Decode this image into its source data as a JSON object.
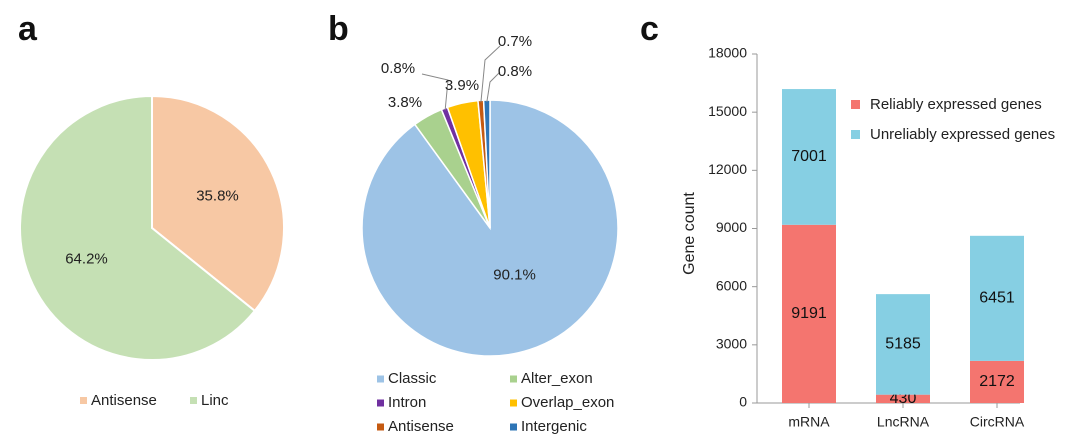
{
  "chart_data": [
    {
      "panel": "a",
      "type": "pie",
      "labels": [
        "Antisense",
        "Linc"
      ],
      "values": [
        35.8,
        64.2
      ],
      "value_labels": [
        "35.8%",
        "64.2%"
      ],
      "colors": [
        "#f7c8a4",
        "#c5e0b4"
      ],
      "legend_position": "bottom"
    },
    {
      "panel": "b",
      "type": "pie",
      "labels": [
        "Classic",
        "Alter_exon",
        "Intron",
        "Overlap_exon",
        "Antisense",
        "Intergenic"
      ],
      "values": [
        90.1,
        3.8,
        0.8,
        3.9,
        0.7,
        0.8
      ],
      "value_labels": [
        "90.1%",
        "3.8%",
        "0.8%",
        "3.9%",
        "0.7%",
        "0.8%"
      ],
      "colors": [
        "#9dc3e6",
        "#a9d18e",
        "#7030a0",
        "#ffc000",
        "#c55a11",
        "#2e75b6"
      ],
      "legend_position": "bottom"
    },
    {
      "panel": "c",
      "type": "bar",
      "stacked": true,
      "categories": [
        "mRNA",
        "LncRNA",
        "CircRNA"
      ],
      "series": [
        {
          "name": "Reliably expressed genes",
          "values": [
            9191,
            430,
            2172
          ],
          "color": "#f4756f"
        },
        {
          "name": "Unreliably expressed genes",
          "values": [
            7001,
            5185,
            6451
          ],
          "color": "#86cfe3"
        }
      ],
      "ylabel": "Gene count",
      "ylim": [
        0,
        18000
      ],
      "yticks": [
        "0",
        "3000",
        "6000",
        "9000",
        "12000",
        "15000",
        "18000"
      ],
      "legend_position": "top-right",
      "grid": false
    }
  ]
}
